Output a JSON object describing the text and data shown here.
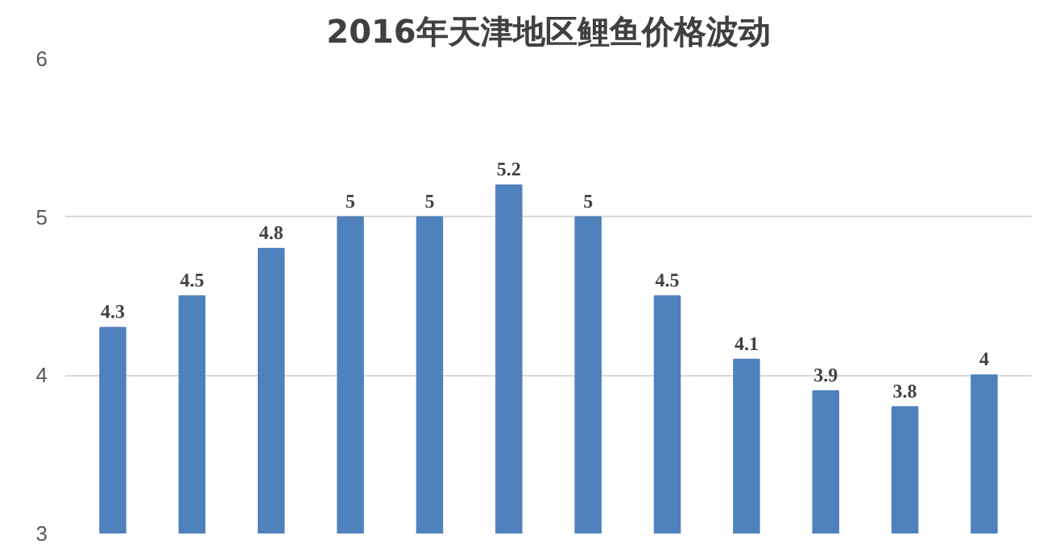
{
  "chart_data": {
    "type": "bar",
    "title": "2016年天津地区鲤鱼价格波动",
    "categories": [
      null,
      null,
      null,
      null,
      null,
      null,
      null,
      null,
      null,
      null,
      null,
      null
    ],
    "values": [
      4.3,
      4.5,
      4.8,
      5,
      5,
      5.2,
      5,
      4.5,
      4.1,
      3.9,
      3.8,
      4
    ],
    "color": "#4f81bd",
    "ylim": [
      3,
      6
    ],
    "yticks": [
      3,
      4,
      5,
      6
    ],
    "grid": "y",
    "data_labels": true
  }
}
